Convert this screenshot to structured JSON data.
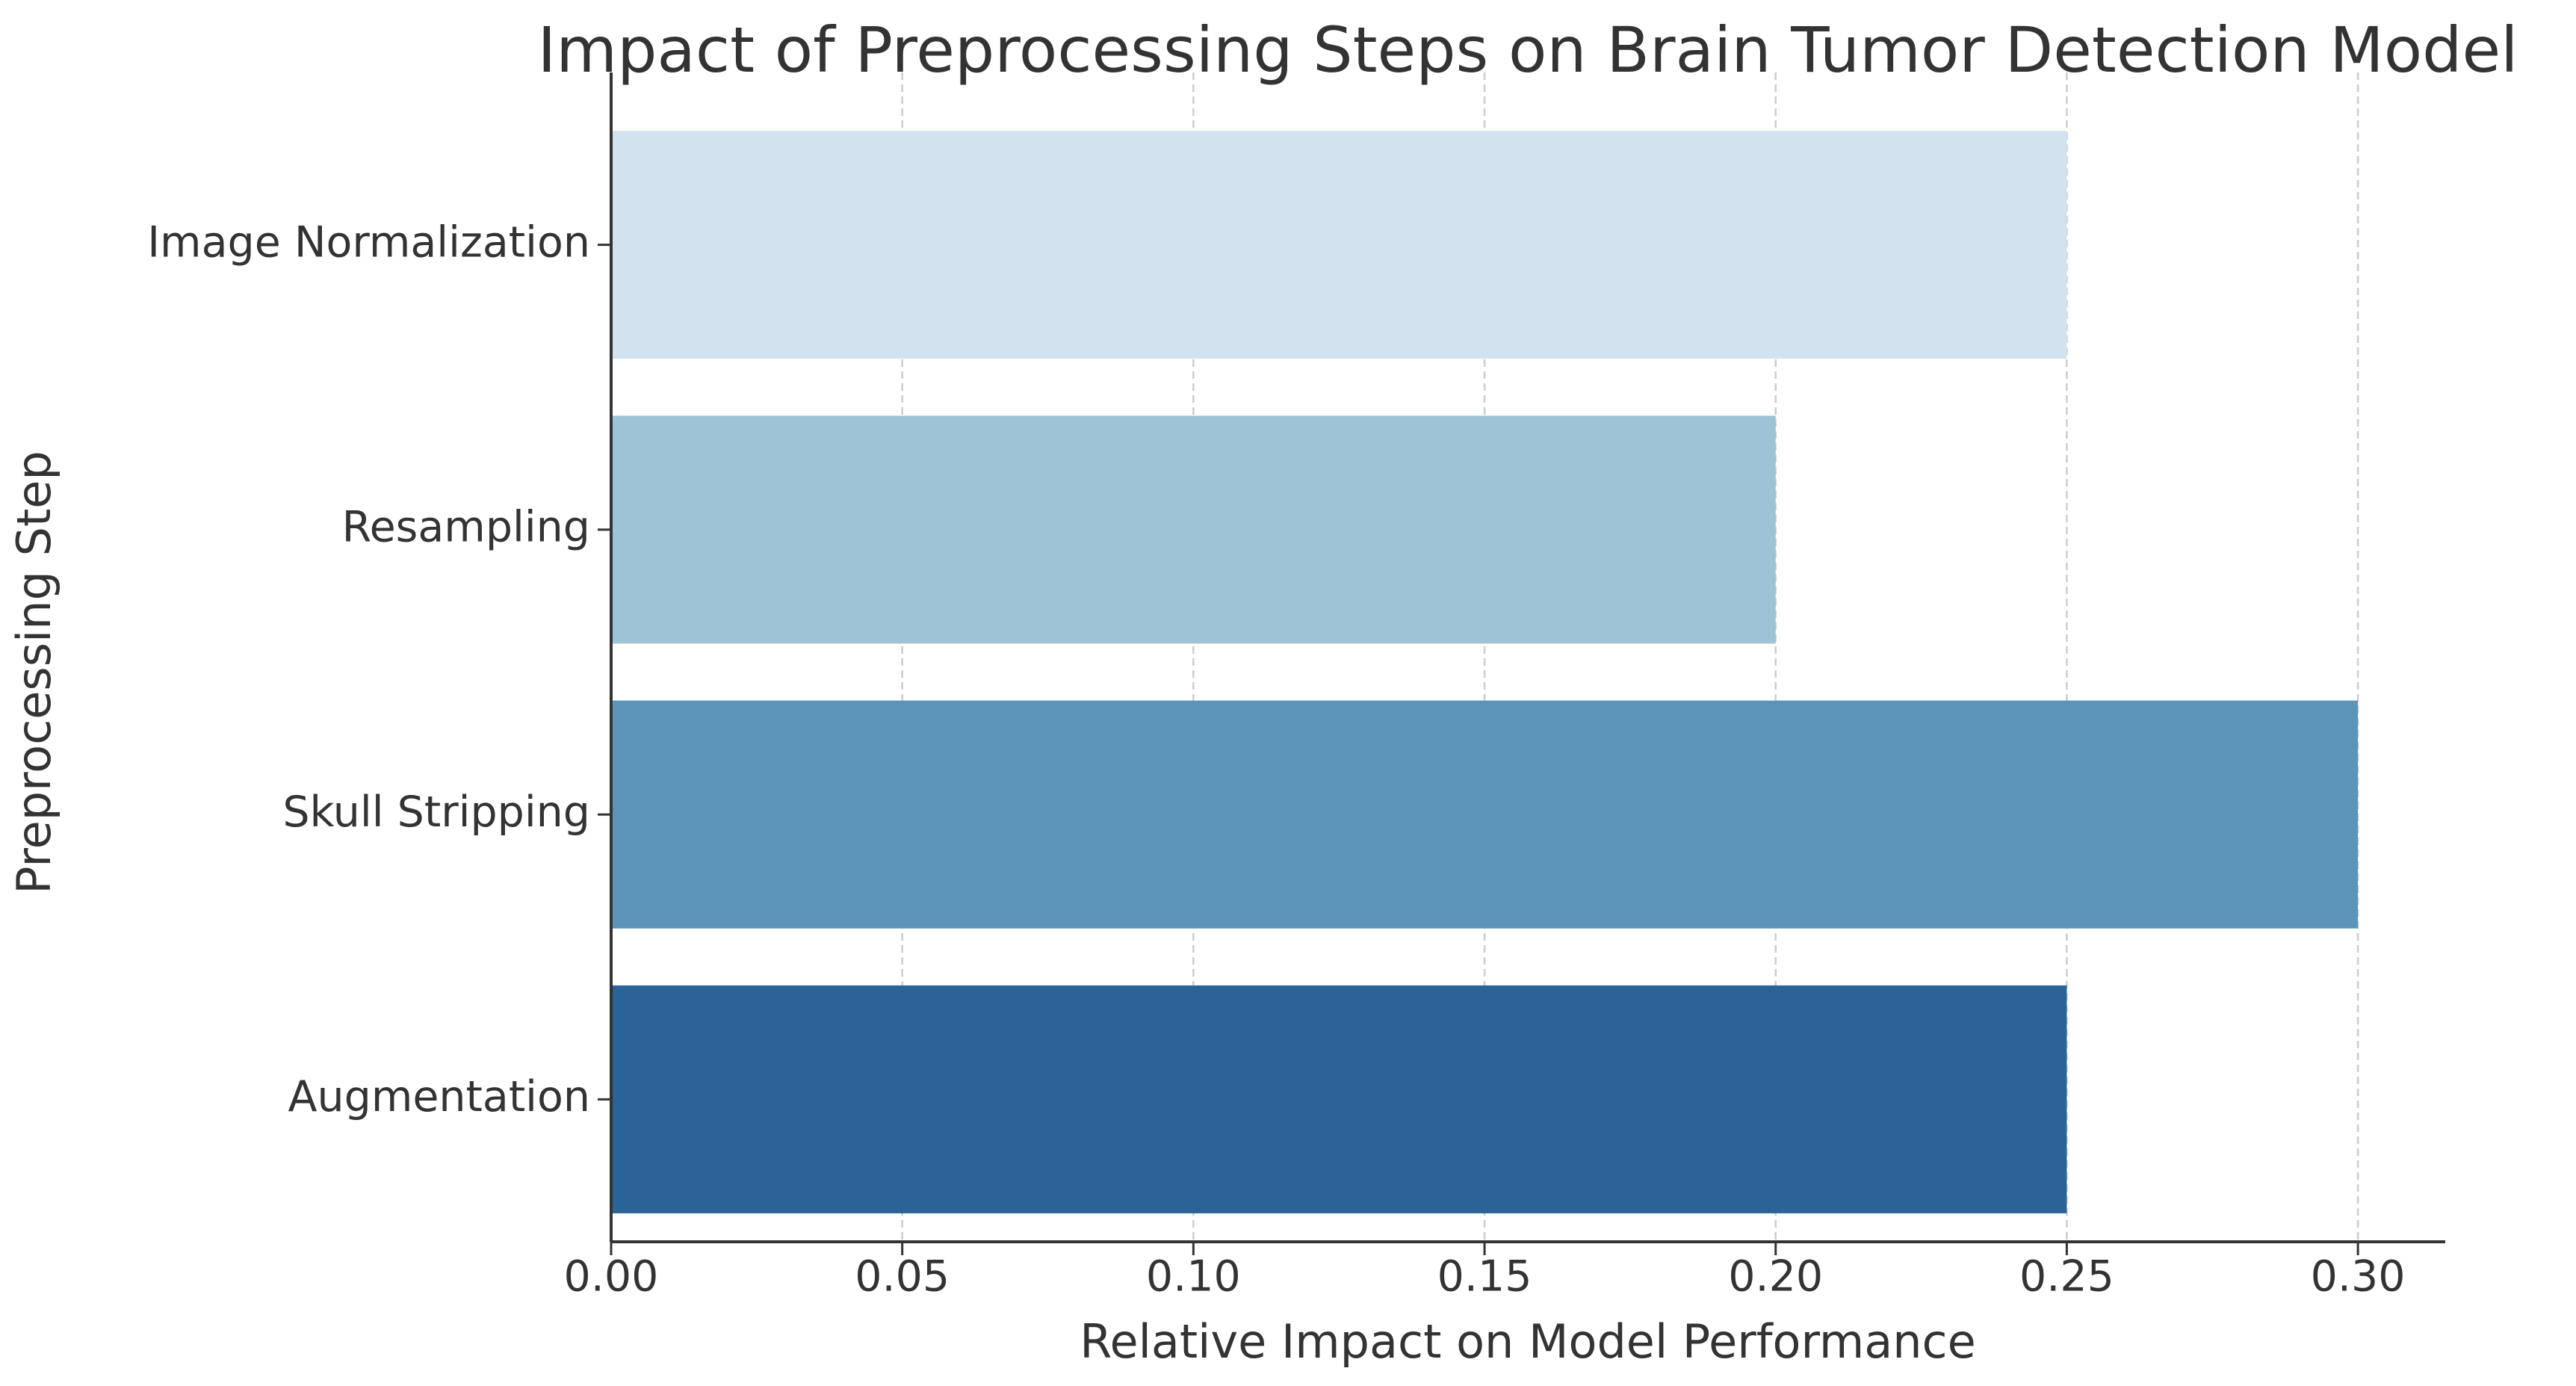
{
  "chart_data": {
    "type": "barh",
    "title": "Impact of Preprocessing Steps on Brain Tumor Detection Model",
    "x_label": "Relative Impact on Model Performance",
    "y_label": "Preprocessing Step",
    "categories": [
      "Image Normalization",
      "Resampling",
      "Skull Stripping",
      "Augmentation"
    ],
    "values": [
      0.25,
      0.2,
      0.3,
      0.25
    ],
    "colors": [
      "#d3e2ef",
      "#9ec2d6",
      "#5b93b9",
      "#2a6398"
    ],
    "xlim": [
      0,
      0.315
    ],
    "xticks": [
      {
        "value": 0,
        "label": "0.00"
      },
      0.05,
      {
        "value": 0.1,
        "label": "0.10"
      },
      0.15,
      {
        "value": 0.2,
        "label": "0.20"
      },
      0.25,
      {
        "value": 0.3,
        "label": "0.30"
      }
    ],
    "grid": true
  }
}
